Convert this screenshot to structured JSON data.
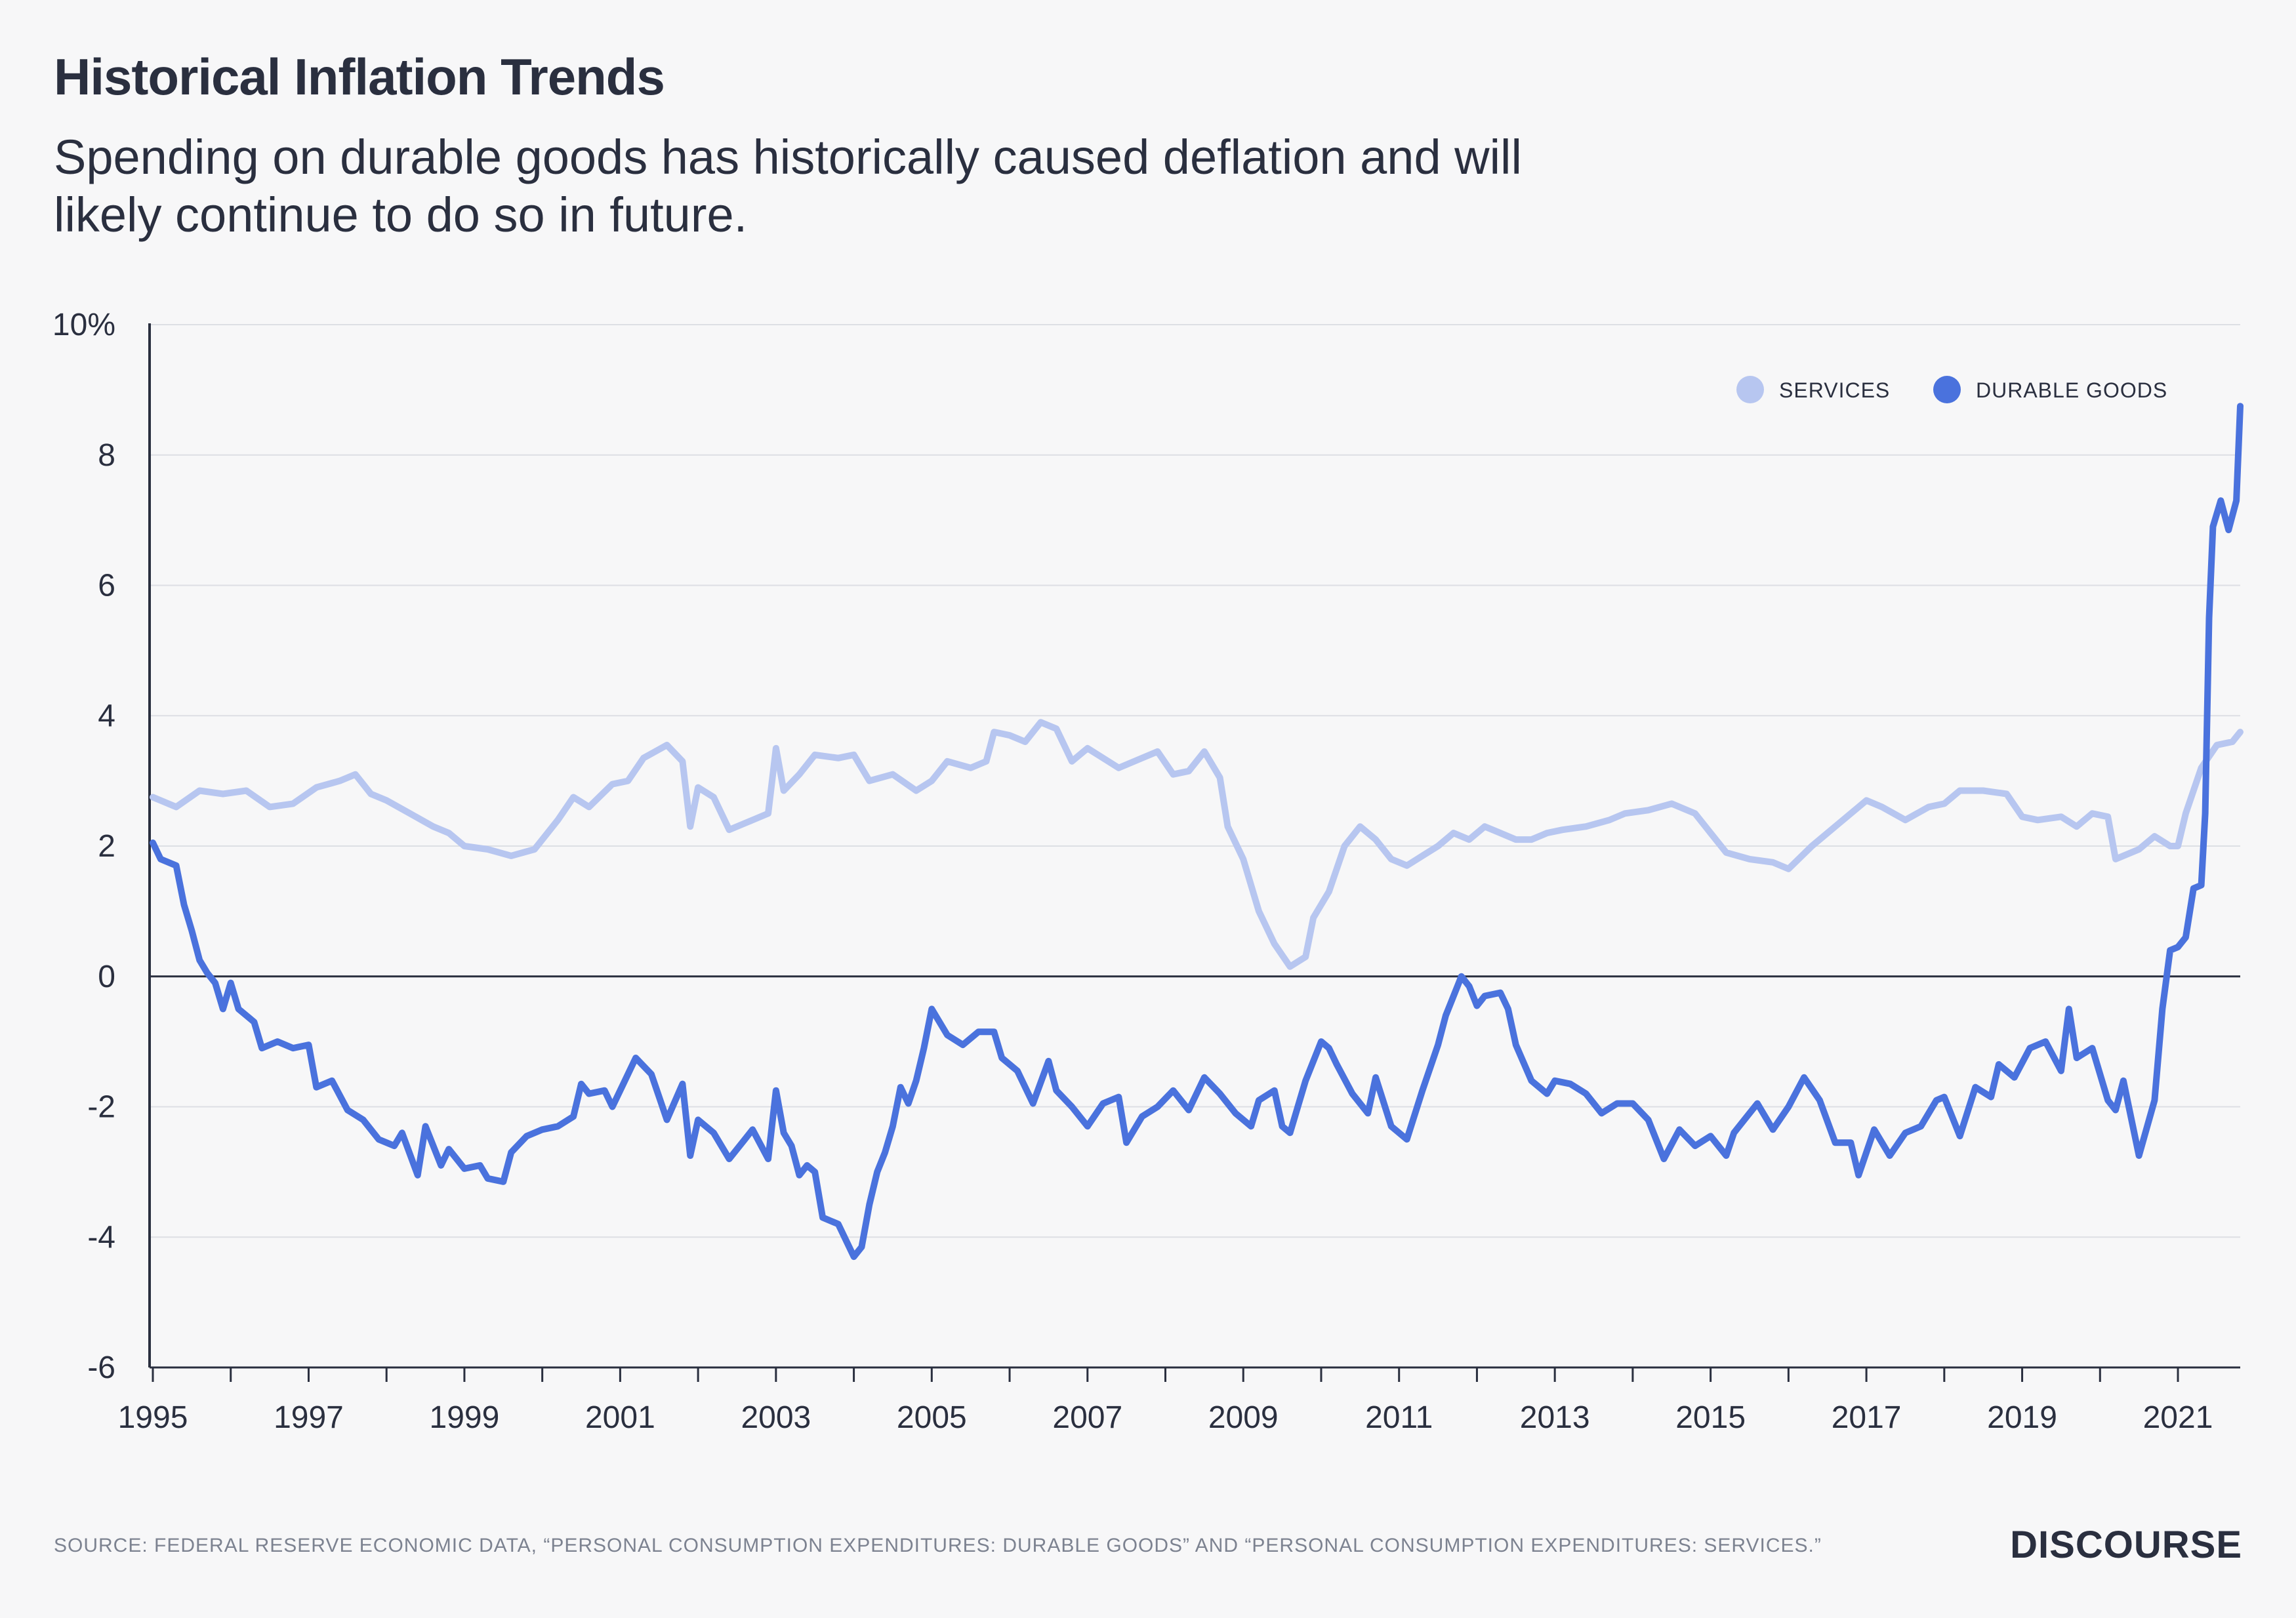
{
  "title": "Historical Inflation Trends",
  "subtitle": "Spending on durable goods has historically caused deflation and will likely continue to do so in future.",
  "source": "SOURCE: FEDERAL RESERVE ECONOMIC DATA, “PERSONAL CONSUMPTION EXPENDITURES: DURABLE GOODS” AND “PERSONAL CONSUMPTION EXPENDITURES: SERVICES.”",
  "brand": "DISCOURSE",
  "colors": {
    "services": "#b7c6f0",
    "durable_goods": "#4a72dd",
    "zero_line": "#2a2f3f",
    "grid": "#dddfe4"
  },
  "chart_data": {
    "type": "line",
    "ylim": [
      -6,
      10
    ],
    "xlim": [
      1995,
      2021.8
    ],
    "y_ticks": [
      "10%",
      "8",
      "6",
      "4",
      "2",
      "0",
      "-2",
      "-4",
      "-6"
    ],
    "y_tick_values": [
      10,
      8,
      6,
      4,
      2,
      0,
      -2,
      -4,
      -6
    ],
    "x_tick_labels": [
      "1995",
      "1997",
      "1999",
      "2001",
      "2003",
      "2005",
      "2007",
      "2009",
      "2011",
      "2013",
      "2015",
      "2017",
      "2019",
      "2021"
    ],
    "x_tick_values": [
      1995,
      1997,
      1999,
      2001,
      2003,
      2005,
      2007,
      2009,
      2011,
      2013,
      2015,
      2017,
      2019,
      2021
    ],
    "legend_position": "top-right",
    "grid": true,
    "series": [
      {
        "name": "SERVICES",
        "points": [
          [
            1995.0,
            2.75
          ],
          [
            1995.3,
            2.6
          ],
          [
            1995.6,
            2.85
          ],
          [
            1995.9,
            2.8
          ],
          [
            1996.2,
            2.85
          ],
          [
            1996.5,
            2.6
          ],
          [
            1996.8,
            2.65
          ],
          [
            1997.1,
            2.9
          ],
          [
            1997.4,
            3.0
          ],
          [
            1997.6,
            3.1
          ],
          [
            1997.8,
            2.8
          ],
          [
            1998.0,
            2.7
          ],
          [
            1998.3,
            2.5
          ],
          [
            1998.6,
            2.3
          ],
          [
            1998.8,
            2.2
          ],
          [
            1999.0,
            2.0
          ],
          [
            1999.3,
            1.95
          ],
          [
            1999.6,
            1.85
          ],
          [
            1999.9,
            1.95
          ],
          [
            2000.2,
            2.4
          ],
          [
            2000.4,
            2.75
          ],
          [
            2000.6,
            2.6
          ],
          [
            2000.9,
            2.95
          ],
          [
            2001.1,
            3.0
          ],
          [
            2001.3,
            3.35
          ],
          [
            2001.6,
            3.55
          ],
          [
            2001.8,
            3.3
          ],
          [
            2001.9,
            2.3
          ],
          [
            2002.0,
            2.9
          ],
          [
            2002.2,
            2.75
          ],
          [
            2002.4,
            2.25
          ],
          [
            2002.7,
            2.4
          ],
          [
            2002.9,
            2.5
          ],
          [
            2003.0,
            3.5
          ],
          [
            2003.1,
            2.85
          ],
          [
            2003.3,
            3.1
          ],
          [
            2003.5,
            3.4
          ],
          [
            2003.8,
            3.35
          ],
          [
            2004.0,
            3.4
          ],
          [
            2004.2,
            3.0
          ],
          [
            2004.5,
            3.1
          ],
          [
            2004.8,
            2.85
          ],
          [
            2005.0,
            3.0
          ],
          [
            2005.2,
            3.3
          ],
          [
            2005.5,
            3.2
          ],
          [
            2005.7,
            3.3
          ],
          [
            2005.8,
            3.75
          ],
          [
            2006.0,
            3.7
          ],
          [
            2006.2,
            3.6
          ],
          [
            2006.4,
            3.9
          ],
          [
            2006.6,
            3.8
          ],
          [
            2006.8,
            3.3
          ],
          [
            2007.0,
            3.5
          ],
          [
            2007.2,
            3.35
          ],
          [
            2007.4,
            3.2
          ],
          [
            2007.7,
            3.35
          ],
          [
            2007.9,
            3.45
          ],
          [
            2008.1,
            3.1
          ],
          [
            2008.3,
            3.15
          ],
          [
            2008.5,
            3.45
          ],
          [
            2008.7,
            3.05
          ],
          [
            2008.8,
            2.3
          ],
          [
            2009.0,
            1.8
          ],
          [
            2009.2,
            1.0
          ],
          [
            2009.4,
            0.5
          ],
          [
            2009.6,
            0.15
          ],
          [
            2009.8,
            0.3
          ],
          [
            2009.9,
            0.9
          ],
          [
            2010.1,
            1.3
          ],
          [
            2010.3,
            2.0
          ],
          [
            2010.5,
            2.3
          ],
          [
            2010.7,
            2.1
          ],
          [
            2010.9,
            1.8
          ],
          [
            2011.1,
            1.7
          ],
          [
            2011.3,
            1.85
          ],
          [
            2011.5,
            2.0
          ],
          [
            2011.7,
            2.2
          ],
          [
            2011.9,
            2.1
          ],
          [
            2012.1,
            2.3
          ],
          [
            2012.3,
            2.2
          ],
          [
            2012.5,
            2.1
          ],
          [
            2012.7,
            2.1
          ],
          [
            2012.9,
            2.2
          ],
          [
            2013.1,
            2.25
          ],
          [
            2013.4,
            2.3
          ],
          [
            2013.7,
            2.4
          ],
          [
            2013.9,
            2.5
          ],
          [
            2014.2,
            2.55
          ],
          [
            2014.5,
            2.65
          ],
          [
            2014.8,
            2.5
          ],
          [
            2015.0,
            2.2
          ],
          [
            2015.2,
            1.9
          ],
          [
            2015.5,
            1.8
          ],
          [
            2015.8,
            1.75
          ],
          [
            2016.0,
            1.65
          ],
          [
            2016.3,
            2.0
          ],
          [
            2016.6,
            2.3
          ],
          [
            2016.9,
            2.6
          ],
          [
            2017.0,
            2.7
          ],
          [
            2017.2,
            2.6
          ],
          [
            2017.5,
            2.4
          ],
          [
            2017.8,
            2.6
          ],
          [
            2018.0,
            2.65
          ],
          [
            2018.2,
            2.85
          ],
          [
            2018.5,
            2.85
          ],
          [
            2018.8,
            2.8
          ],
          [
            2019.0,
            2.45
          ],
          [
            2019.2,
            2.4
          ],
          [
            2019.5,
            2.45
          ],
          [
            2019.7,
            2.3
          ],
          [
            2019.9,
            2.5
          ],
          [
            2020.1,
            2.45
          ],
          [
            2020.2,
            1.8
          ],
          [
            2020.5,
            1.95
          ],
          [
            2020.7,
            2.15
          ],
          [
            2020.9,
            2.0
          ],
          [
            2021.0,
            2.0
          ],
          [
            2021.1,
            2.5
          ],
          [
            2021.3,
            3.2
          ],
          [
            2021.5,
            3.55
          ],
          [
            2021.7,
            3.6
          ],
          [
            2021.8,
            3.75
          ]
        ]
      },
      {
        "name": "DURABLE GOODS",
        "points": [
          [
            1995.0,
            2.05
          ],
          [
            1995.1,
            1.8
          ],
          [
            1995.3,
            1.7
          ],
          [
            1995.4,
            1.1
          ],
          [
            1995.5,
            0.7
          ],
          [
            1995.6,
            0.25
          ],
          [
            1995.7,
            0.05
          ],
          [
            1995.8,
            -0.1
          ],
          [
            1995.9,
            -0.5
          ],
          [
            1996.0,
            -0.1
          ],
          [
            1996.1,
            -0.5
          ],
          [
            1996.3,
            -0.7
          ],
          [
            1996.4,
            -1.1
          ],
          [
            1996.6,
            -1.0
          ],
          [
            1996.8,
            -1.1
          ],
          [
            1997.0,
            -1.05
          ],
          [
            1997.1,
            -1.7
          ],
          [
            1997.3,
            -1.6
          ],
          [
            1997.5,
            -2.05
          ],
          [
            1997.7,
            -2.2
          ],
          [
            1997.9,
            -2.5
          ],
          [
            1998.1,
            -2.6
          ],
          [
            1998.2,
            -2.4
          ],
          [
            1998.4,
            -3.05
          ],
          [
            1998.5,
            -2.3
          ],
          [
            1998.7,
            -2.9
          ],
          [
            1998.8,
            -2.65
          ],
          [
            1999.0,
            -2.95
          ],
          [
            1999.2,
            -2.9
          ],
          [
            1999.3,
            -3.1
          ],
          [
            1999.5,
            -3.15
          ],
          [
            1999.6,
            -2.7
          ],
          [
            1999.8,
            -2.45
          ],
          [
            2000.0,
            -2.35
          ],
          [
            2000.2,
            -2.3
          ],
          [
            2000.4,
            -2.15
          ],
          [
            2000.5,
            -1.65
          ],
          [
            2000.6,
            -1.8
          ],
          [
            2000.8,
            -1.75
          ],
          [
            2000.9,
            -2.0
          ],
          [
            2001.0,
            -1.75
          ],
          [
            2001.2,
            -1.25
          ],
          [
            2001.4,
            -1.5
          ],
          [
            2001.5,
            -1.85
          ],
          [
            2001.6,
            -2.2
          ],
          [
            2001.8,
            -1.65
          ],
          [
            2001.9,
            -2.75
          ],
          [
            2002.0,
            -2.2
          ],
          [
            2002.2,
            -2.4
          ],
          [
            2002.4,
            -2.8
          ],
          [
            2002.6,
            -2.5
          ],
          [
            2002.7,
            -2.35
          ],
          [
            2002.9,
            -2.8
          ],
          [
            2003.0,
            -1.75
          ],
          [
            2003.1,
            -2.4
          ],
          [
            2003.2,
            -2.6
          ],
          [
            2003.3,
            -3.05
          ],
          [
            2003.4,
            -2.9
          ],
          [
            2003.5,
            -3.0
          ],
          [
            2003.6,
            -3.7
          ],
          [
            2003.8,
            -3.8
          ],
          [
            2004.0,
            -4.3
          ],
          [
            2004.1,
            -4.15
          ],
          [
            2004.2,
            -3.5
          ],
          [
            2004.3,
            -3.0
          ],
          [
            2004.4,
            -2.7
          ],
          [
            2004.5,
            -2.3
          ],
          [
            2004.6,
            -1.7
          ],
          [
            2004.7,
            -1.95
          ],
          [
            2004.8,
            -1.6
          ],
          [
            2004.9,
            -1.1
          ],
          [
            2005.0,
            -0.5
          ],
          [
            2005.2,
            -0.9
          ],
          [
            2005.4,
            -1.05
          ],
          [
            2005.6,
            -0.85
          ],
          [
            2005.8,
            -0.85
          ],
          [
            2005.9,
            -1.25
          ],
          [
            2006.1,
            -1.45
          ],
          [
            2006.3,
            -1.95
          ],
          [
            2006.5,
            -1.3
          ],
          [
            2006.6,
            -1.75
          ],
          [
            2006.8,
            -2.0
          ],
          [
            2007.0,
            -2.3
          ],
          [
            2007.2,
            -1.95
          ],
          [
            2007.4,
            -1.85
          ],
          [
            2007.5,
            -2.55
          ],
          [
            2007.7,
            -2.15
          ],
          [
            2007.9,
            -2.0
          ],
          [
            2008.1,
            -1.75
          ],
          [
            2008.3,
            -2.05
          ],
          [
            2008.5,
            -1.55
          ],
          [
            2008.7,
            -1.8
          ],
          [
            2008.9,
            -2.1
          ],
          [
            2009.1,
            -2.3
          ],
          [
            2009.2,
            -1.9
          ],
          [
            2009.4,
            -1.75
          ],
          [
            2009.5,
            -2.3
          ],
          [
            2009.6,
            -2.4
          ],
          [
            2009.8,
            -1.6
          ],
          [
            2010.0,
            -1.0
          ],
          [
            2010.1,
            -1.1
          ],
          [
            2010.2,
            -1.35
          ],
          [
            2010.4,
            -1.8
          ],
          [
            2010.6,
            -2.1
          ],
          [
            2010.7,
            -1.55
          ],
          [
            2010.9,
            -2.3
          ],
          [
            2011.1,
            -2.5
          ],
          [
            2011.3,
            -1.75
          ],
          [
            2011.5,
            -1.05
          ],
          [
            2011.6,
            -0.6
          ],
          [
            2011.8,
            0.0
          ],
          [
            2011.9,
            -0.15
          ],
          [
            2012.0,
            -0.45
          ],
          [
            2012.1,
            -0.3
          ],
          [
            2012.3,
            -0.25
          ],
          [
            2012.4,
            -0.5
          ],
          [
            2012.5,
            -1.05
          ],
          [
            2012.7,
            -1.6
          ],
          [
            2012.9,
            -1.8
          ],
          [
            2013.0,
            -1.6
          ],
          [
            2013.2,
            -1.65
          ],
          [
            2013.4,
            -1.8
          ],
          [
            2013.6,
            -2.1
          ],
          [
            2013.8,
            -1.95
          ],
          [
            2014.0,
            -1.95
          ],
          [
            2014.2,
            -2.2
          ],
          [
            2014.4,
            -2.8
          ],
          [
            2014.6,
            -2.35
          ],
          [
            2014.8,
            -2.6
          ],
          [
            2015.0,
            -2.45
          ],
          [
            2015.2,
            -2.75
          ],
          [
            2015.3,
            -2.4
          ],
          [
            2015.5,
            -2.1
          ],
          [
            2015.6,
            -1.95
          ],
          [
            2015.8,
            -2.35
          ],
          [
            2016.0,
            -2.0
          ],
          [
            2016.2,
            -1.55
          ],
          [
            2016.4,
            -1.9
          ],
          [
            2016.6,
            -2.55
          ],
          [
            2016.8,
            -2.55
          ],
          [
            2016.9,
            -3.05
          ],
          [
            2017.1,
            -2.35
          ],
          [
            2017.3,
            -2.75
          ],
          [
            2017.5,
            -2.4
          ],
          [
            2017.7,
            -2.3
          ],
          [
            2017.9,
            -1.9
          ],
          [
            2018.0,
            -1.85
          ],
          [
            2018.2,
            -2.45
          ],
          [
            2018.4,
            -1.7
          ],
          [
            2018.6,
            -1.85
          ],
          [
            2018.7,
            -1.35
          ],
          [
            2018.9,
            -1.55
          ],
          [
            2019.1,
            -1.1
          ],
          [
            2019.3,
            -1.0
          ],
          [
            2019.5,
            -1.45
          ],
          [
            2019.6,
            -0.5
          ],
          [
            2019.7,
            -1.25
          ],
          [
            2019.9,
            -1.1
          ],
          [
            2020.1,
            -1.9
          ],
          [
            2020.2,
            -2.05
          ],
          [
            2020.3,
            -1.6
          ],
          [
            2020.5,
            -2.75
          ],
          [
            2020.7,
            -1.9
          ],
          [
            2020.8,
            -0.5
          ],
          [
            2020.9,
            0.4
          ],
          [
            2021.0,
            0.45
          ],
          [
            2021.1,
            0.6
          ],
          [
            2021.2,
            1.35
          ],
          [
            2021.3,
            1.4
          ],
          [
            2021.35,
            2.5
          ],
          [
            2021.4,
            5.5
          ],
          [
            2021.45,
            6.9
          ],
          [
            2021.55,
            7.3
          ],
          [
            2021.65,
            6.85
          ],
          [
            2021.75,
            7.3
          ],
          [
            2021.8,
            8.75
          ]
        ]
      }
    ]
  }
}
